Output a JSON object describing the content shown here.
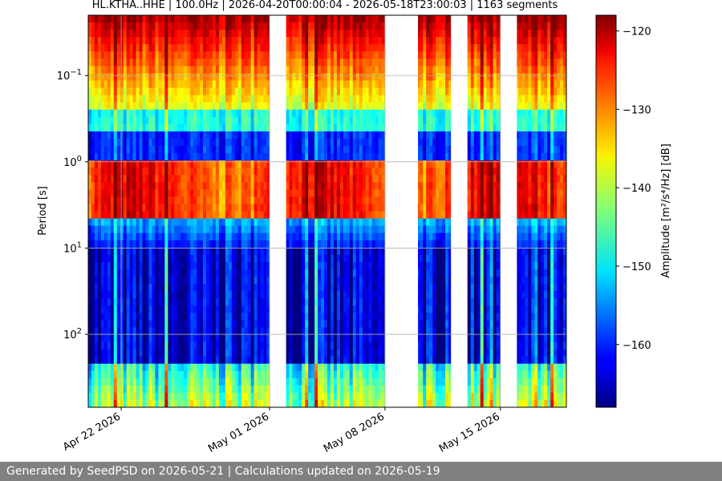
{
  "chart_data": {
    "type": "heatmap",
    "title": "HL.KTHA..HHE | 100.0Hz | 2026-04-20T00:00:04 - 2026-05-18T23:00:03 | 1163 segments",
    "ylabel": "Period [s]",
    "colorbar_label": "Amplitude [m²/s⁴/Hz] [dB]",
    "x_ticks": [
      "Apr 22 2026",
      "May 01 2026",
      "May 08 2026",
      "May 15 2026"
    ],
    "x_range": [
      "2026-04-20",
      "2026-05-19"
    ],
    "y_scale": "log",
    "y_range": [
      0.02,
      700
    ],
    "y_ticks": [
      {
        "base": "10",
        "exp": "−1",
        "value": 0.1
      },
      {
        "base": "10",
        "exp": "0",
        "value": 1
      },
      {
        "base": "10",
        "exp": "1",
        "value": 10
      },
      {
        "base": "10",
        "exp": "2",
        "value": 100
      }
    ],
    "colorbar_range": [
      -168,
      -118
    ],
    "colorbar_ticks": [
      "−120",
      "−130",
      "−140",
      "−150",
      "−160"
    ],
    "colorbar_tick_values": [
      -120,
      -130,
      -140,
      -150,
      -160
    ],
    "data_gaps": [
      [
        "2026-05-01",
        "2026-05-02"
      ],
      [
        "2026-05-08",
        "2026-05-10"
      ],
      [
        "2026-05-12",
        "2026-05-13"
      ],
      [
        "2026-05-15",
        "2026-05-16"
      ]
    ],
    "grid": true,
    "colormap": "jet"
  },
  "footer": "Generated by SeedPSD on 2026-05-21 | Calculations updated on 2026-05-19"
}
